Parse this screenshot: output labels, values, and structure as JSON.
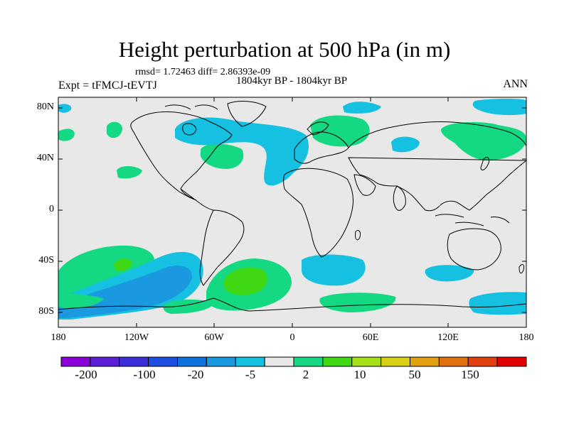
{
  "map": {
    "title": "Height perturbation at 500 hPa (in m)",
    "rmsd_line": "rmsd= 1.72463 diff= 2.86393e-09",
    "subtitle": "1804kyr BP - 1804kyr BP",
    "experiment": "Expt = tFMCJ-tEVTJ",
    "season": "ANN",
    "lat_labels": [
      "80N",
      "40N",
      "0",
      "40S",
      "80S"
    ],
    "lon_labels": [
      "180",
      "120W",
      "60W",
      "0",
      "60E",
      "120E",
      "180"
    ]
  },
  "colorbar": {
    "colors": [
      "#8a00d8",
      "#5a1fd6",
      "#3a2fd8",
      "#1f4fe0",
      "#0e72dc",
      "#1a98e0",
      "#15c0e0",
      "#e8e8e8",
      "#14d882",
      "#40d814",
      "#a6e01a",
      "#d8d014",
      "#e0a010",
      "#e07010",
      "#e04010",
      "#e00000"
    ],
    "labels": [
      "-200",
      "-100",
      "-20",
      "-5",
      "2",
      "10",
      "50",
      "150"
    ]
  },
  "palette": {
    "background": "#e8e8e8",
    "light_green": "#14d882",
    "green": "#40d814",
    "cyan": "#15c0e0",
    "light_blue": "#1a98e0",
    "blue": "#0e72dc"
  }
}
